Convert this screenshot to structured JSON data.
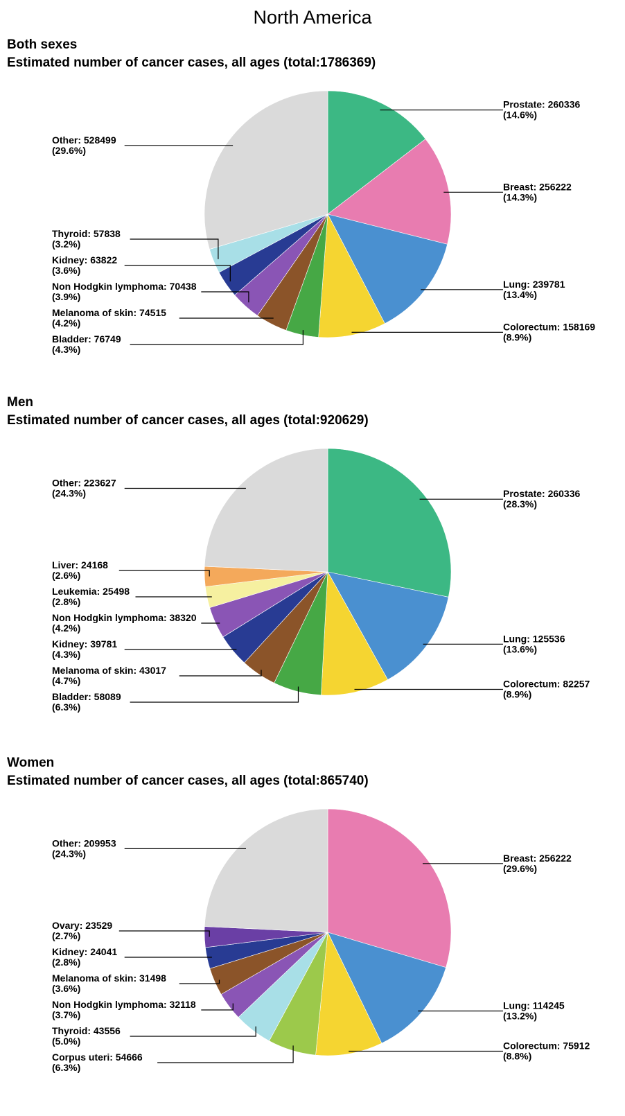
{
  "page_title": "North America",
  "chart_data": [
    {
      "type": "pie",
      "title": "Both sexes",
      "subtitle": "Estimated number of cancer cases, all ages (total:1786369)",
      "total": 1786369,
      "slices": [
        {
          "name": "Prostate",
          "value": 260336,
          "pct": "14.6%",
          "color": "#3cb884",
          "label": "Prostate: 260336",
          "pct_label": "(14.6%)"
        },
        {
          "name": "Breast",
          "value": 256222,
          "pct": "14.3%",
          "color": "#e87cb0",
          "label": "Breast: 256222",
          "pct_label": "(14.3%)"
        },
        {
          "name": "Lung",
          "value": 239781,
          "pct": "13.4%",
          "color": "#4a90d0",
          "label": "Lung: 239781",
          "pct_label": "(13.4%)"
        },
        {
          "name": "Colorectum",
          "value": 158169,
          "pct": "8.9%",
          "color": "#f5d531",
          "label": "Colorectum: 158169",
          "pct_label": "(8.9%)"
        },
        {
          "name": "Bladder",
          "value": 76749,
          "pct": "4.3%",
          "color": "#46a845",
          "label": "Bladder: 76749",
          "pct_label": "(4.3%)"
        },
        {
          "name": "Melanoma of skin",
          "value": 74515,
          "pct": "4.2%",
          "color": "#8b5429",
          "label": "Melanoma of skin: 74515",
          "pct_label": "(4.2%)"
        },
        {
          "name": "Non Hodgkin lymphoma",
          "value": 70438,
          "pct": "3.9%",
          "color": "#8a55b5",
          "label": "Non Hodgkin lymphoma: 70438",
          "pct_label": "(3.9%)"
        },
        {
          "name": "Kidney",
          "value": 63822,
          "pct": "3.6%",
          "color": "#283b93",
          "label": "Kidney: 63822",
          "pct_label": "(3.6%)"
        },
        {
          "name": "Thyroid",
          "value": 57838,
          "pct": "3.2%",
          "color": "#a8dfe7",
          "label": "Thyroid: 57838",
          "pct_label": "(3.2%)"
        },
        {
          "name": "Other",
          "value": 528499,
          "pct": "29.6%",
          "color": "#dadada",
          "label": "Other: 528499",
          "pct_label": "(29.6%)"
        }
      ]
    },
    {
      "type": "pie",
      "title": "Men",
      "subtitle": "Estimated number of cancer cases, all ages (total:920629)",
      "total": 920629,
      "slices": [
        {
          "name": "Prostate",
          "value": 260336,
          "pct": "28.3%",
          "color": "#3cb884",
          "label": "Prostate: 260336",
          "pct_label": "(28.3%)"
        },
        {
          "name": "Lung",
          "value": 125536,
          "pct": "13.6%",
          "color": "#4a90d0",
          "label": "Lung: 125536",
          "pct_label": "(13.6%)"
        },
        {
          "name": "Colorectum",
          "value": 82257,
          "pct": "8.9%",
          "color": "#f5d531",
          "label": "Colorectum: 82257",
          "pct_label": "(8.9%)"
        },
        {
          "name": "Bladder",
          "value": 58089,
          "pct": "6.3%",
          "color": "#46a845",
          "label": "Bladder: 58089",
          "pct_label": "(6.3%)"
        },
        {
          "name": "Melanoma of skin",
          "value": 43017,
          "pct": "4.7%",
          "color": "#8b5429",
          "label": "Melanoma of skin: 43017",
          "pct_label": "(4.7%)"
        },
        {
          "name": "Kidney",
          "value": 39781,
          "pct": "4.3%",
          "color": "#283b93",
          "label": "Kidney: 39781",
          "pct_label": "(4.3%)"
        },
        {
          "name": "Non Hodgkin lymphoma",
          "value": 38320,
          "pct": "4.2%",
          "color": "#8a55b5",
          "label": "Non Hodgkin lymphoma: 38320",
          "pct_label": "(4.2%)"
        },
        {
          "name": "Leukemia",
          "value": 25498,
          "pct": "2.8%",
          "color": "#f6f0a0",
          "label": "Leukemia: 25498",
          "pct_label": "(2.8%)"
        },
        {
          "name": "Liver",
          "value": 24168,
          "pct": "2.6%",
          "color": "#f4a95b",
          "label": "Liver: 24168",
          "pct_label": "(2.6%)"
        },
        {
          "name": "Other",
          "value": 223627,
          "pct": "24.3%",
          "color": "#dadada",
          "label": "Other: 223627",
          "pct_label": "(24.3%)"
        }
      ]
    },
    {
      "type": "pie",
      "title": "Women",
      "subtitle": "Estimated number of cancer cases, all ages (total:865740)",
      "total": 865740,
      "slices": [
        {
          "name": "Breast",
          "value": 256222,
          "pct": "29.6%",
          "color": "#e87cb0",
          "label": "Breast: 256222",
          "pct_label": "(29.6%)"
        },
        {
          "name": "Lung",
          "value": 114245,
          "pct": "13.2%",
          "color": "#4a90d0",
          "label": "Lung: 114245",
          "pct_label": "(13.2%)"
        },
        {
          "name": "Colorectum",
          "value": 75912,
          "pct": "8.8%",
          "color": "#f5d531",
          "label": "Colorectum: 75912",
          "pct_label": "(8.8%)"
        },
        {
          "name": "Corpus uteri",
          "value": 54666,
          "pct": "6.3%",
          "color": "#9cc94b",
          "label": "Corpus uteri: 54666",
          "pct_label": "(6.3%)"
        },
        {
          "name": "Thyroid",
          "value": 43556,
          "pct": "5.0%",
          "color": "#a8dfe7",
          "label": "Thyroid: 43556",
          "pct_label": "(5.0%)"
        },
        {
          "name": "Non Hodgkin lymphoma",
          "value": 32118,
          "pct": "3.7%",
          "color": "#8a55b5",
          "label": "Non Hodgkin lymphoma: 32118",
          "pct_label": "(3.7%)"
        },
        {
          "name": "Melanoma of skin",
          "value": 31498,
          "pct": "3.6%",
          "color": "#8b5429",
          "label": "Melanoma of skin: 31498",
          "pct_label": "(3.6%)"
        },
        {
          "name": "Kidney",
          "value": 24041,
          "pct": "2.8%",
          "color": "#283b93",
          "label": "Kidney: 24041",
          "pct_label": "(2.8%)"
        },
        {
          "name": "Ovary",
          "value": 23529,
          "pct": "2.7%",
          "color": "#6a3fa5",
          "label": "Ovary: 23529",
          "pct_label": "(2.7%)"
        },
        {
          "name": "Other",
          "value": 209953,
          "pct": "24.3%",
          "color": "#dadada",
          "label": "Other: 209953",
          "pct_label": "(24.3%)"
        }
      ]
    }
  ]
}
